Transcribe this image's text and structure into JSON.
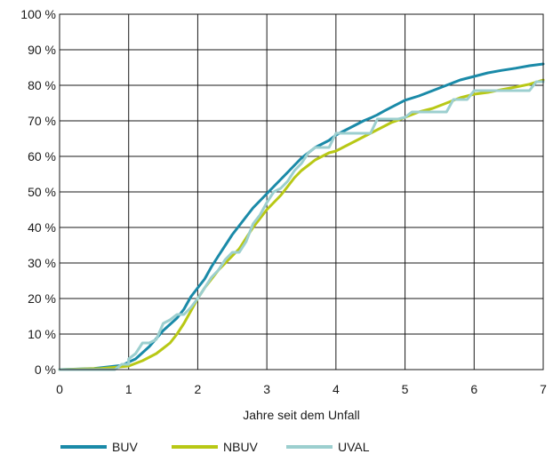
{
  "chart_data": {
    "type": "line",
    "title": "",
    "xlabel": "Jahre seit dem Unfall",
    "ylabel": "",
    "xlim": [
      0,
      7
    ],
    "ylim": [
      0,
      100
    ],
    "x_ticks": [
      "0",
      "1",
      "2",
      "3",
      "4",
      "5",
      "6",
      "7"
    ],
    "y_ticks": [
      "0 %",
      "10 %",
      "20 %",
      "30 %",
      "40 %",
      "50 %",
      "60 %",
      "70 %",
      "80 %",
      "90 %",
      "100 %"
    ],
    "grid": true,
    "legend_position": "bottom",
    "series": [
      {
        "name": "BUV",
        "color": "#1a8aa8",
        "points": [
          [
            0,
            0
          ],
          [
            0.5,
            0.3
          ],
          [
            0.9,
            1.2
          ],
          [
            1.1,
            3
          ],
          [
            1.3,
            6.5
          ],
          [
            1.5,
            11
          ],
          [
            1.7,
            14.5
          ],
          [
            1.8,
            17
          ],
          [
            1.9,
            20.5
          ],
          [
            2.0,
            23
          ],
          [
            2.1,
            25.5
          ],
          [
            2.2,
            29
          ],
          [
            2.3,
            32
          ],
          [
            2.4,
            35
          ],
          [
            2.5,
            38
          ],
          [
            2.6,
            40.5
          ],
          [
            2.7,
            43
          ],
          [
            2.8,
            45.5
          ],
          [
            2.9,
            47.5
          ],
          [
            3.0,
            49.5
          ],
          [
            3.1,
            51.5
          ],
          [
            3.2,
            53.5
          ],
          [
            3.3,
            55.5
          ],
          [
            3.4,
            57.5
          ],
          [
            3.5,
            59.5
          ],
          [
            3.6,
            61
          ],
          [
            3.7,
            62.5
          ],
          [
            3.8,
            63.5
          ],
          [
            3.9,
            64.5
          ],
          [
            4.0,
            66
          ],
          [
            4.1,
            67
          ],
          [
            4.2,
            68
          ],
          [
            4.3,
            69
          ],
          [
            4.4,
            70
          ],
          [
            4.5,
            70.8
          ],
          [
            4.6,
            71.7
          ],
          [
            4.7,
            72.8
          ],
          [
            4.8,
            73.8
          ],
          [
            4.9,
            74.8
          ],
          [
            5.0,
            75.8
          ],
          [
            5.2,
            77
          ],
          [
            5.4,
            78.5
          ],
          [
            5.6,
            80
          ],
          [
            5.8,
            81.5
          ],
          [
            6.0,
            82.5
          ],
          [
            6.2,
            83.5
          ],
          [
            6.4,
            84.2
          ],
          [
            6.6,
            84.8
          ],
          [
            6.8,
            85.5
          ],
          [
            7.0,
            86
          ]
        ]
      },
      {
        "name": "NBUV",
        "color": "#b8c815",
        "points": [
          [
            0,
            0
          ],
          [
            0.6,
            0.3
          ],
          [
            1.0,
            1
          ],
          [
            1.2,
            2.5
          ],
          [
            1.4,
            4.5
          ],
          [
            1.5,
            6
          ],
          [
            1.6,
            7.5
          ],
          [
            1.7,
            10
          ],
          [
            1.8,
            13
          ],
          [
            1.9,
            16.5
          ],
          [
            2.0,
            20
          ],
          [
            2.1,
            23
          ],
          [
            2.2,
            25.5
          ],
          [
            2.3,
            28
          ],
          [
            2.4,
            30
          ],
          [
            2.5,
            32
          ],
          [
            2.6,
            34
          ],
          [
            2.7,
            37
          ],
          [
            2.8,
            40
          ],
          [
            2.9,
            42.5
          ],
          [
            3.0,
            45
          ],
          [
            3.1,
            47
          ],
          [
            3.2,
            49
          ],
          [
            3.3,
            51.5
          ],
          [
            3.4,
            54
          ],
          [
            3.5,
            56
          ],
          [
            3.6,
            57.5
          ],
          [
            3.7,
            59
          ],
          [
            3.8,
            60
          ],
          [
            3.9,
            61
          ],
          [
            4.0,
            61.5
          ],
          [
            4.1,
            62.5
          ],
          [
            4.2,
            63.5
          ],
          [
            4.3,
            64.5
          ],
          [
            4.4,
            65.5
          ],
          [
            4.5,
            66.5
          ],
          [
            4.6,
            67.5
          ],
          [
            4.7,
            68.5
          ],
          [
            4.8,
            69.5
          ],
          [
            4.9,
            70.2
          ],
          [
            5.0,
            71
          ],
          [
            5.2,
            72.5
          ],
          [
            5.4,
            73.5
          ],
          [
            5.6,
            75
          ],
          [
            5.8,
            76.5
          ],
          [
            6.0,
            77.5
          ],
          [
            6.2,
            78
          ],
          [
            6.4,
            78.8
          ],
          [
            6.6,
            79.5
          ],
          [
            6.8,
            80.3
          ],
          [
            7.0,
            81.5
          ]
        ]
      },
      {
        "name": "UVAL",
        "color": "#9ccfcf",
        "points": [
          [
            0,
            0
          ],
          [
            0.8,
            0
          ],
          [
            0.9,
            1.5
          ],
          [
            1.0,
            1.5
          ],
          [
            1.0,
            3
          ],
          [
            1.1,
            4.5
          ],
          [
            1.2,
            7.5
          ],
          [
            1.3,
            7.5
          ],
          [
            1.4,
            8.5
          ],
          [
            1.5,
            13
          ],
          [
            1.6,
            14
          ],
          [
            1.7,
            15.5
          ],
          [
            1.8,
            15.5
          ],
          [
            1.9,
            17.5
          ],
          [
            2.0,
            20
          ],
          [
            2.1,
            23
          ],
          [
            2.2,
            26
          ],
          [
            2.3,
            28
          ],
          [
            2.4,
            31
          ],
          [
            2.5,
            33
          ],
          [
            2.6,
            33
          ],
          [
            2.7,
            36
          ],
          [
            2.8,
            41
          ],
          [
            2.9,
            43.5
          ],
          [
            3.0,
            47
          ],
          [
            3.1,
            50
          ],
          [
            3.2,
            51
          ],
          [
            3.3,
            53
          ],
          [
            3.4,
            56
          ],
          [
            3.5,
            58
          ],
          [
            3.6,
            61
          ],
          [
            3.7,
            62.5
          ],
          [
            3.8,
            62.5
          ],
          [
            3.9,
            62.5
          ],
          [
            4.0,
            66.5
          ],
          [
            4.1,
            66.5
          ],
          [
            4.2,
            66.5
          ],
          [
            4.3,
            66.5
          ],
          [
            4.4,
            66.5
          ],
          [
            4.5,
            66.5
          ],
          [
            4.6,
            70.5
          ],
          [
            4.7,
            70.5
          ],
          [
            4.8,
            70.5
          ],
          [
            4.9,
            70.5
          ],
          [
            5.0,
            71
          ],
          [
            5.1,
            72.5
          ],
          [
            5.2,
            72.5
          ],
          [
            5.4,
            72.5
          ],
          [
            5.6,
            72.5
          ],
          [
            5.7,
            76
          ],
          [
            5.8,
            76
          ],
          [
            5.9,
            76
          ],
          [
            6.0,
            78.5
          ],
          [
            6.2,
            78.5
          ],
          [
            6.4,
            78.5
          ],
          [
            6.6,
            78.5
          ],
          [
            6.8,
            78.5
          ],
          [
            6.9,
            81
          ],
          [
            7.0,
            81
          ]
        ]
      }
    ]
  }
}
